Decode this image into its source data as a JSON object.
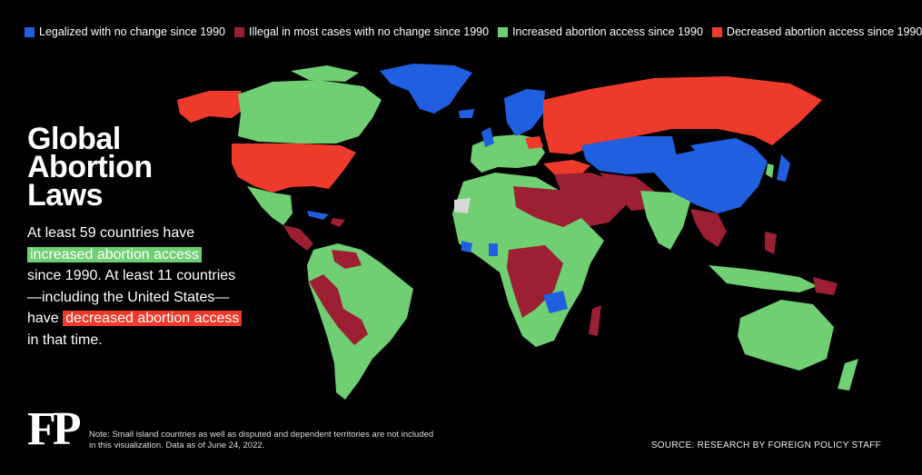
{
  "legend": [
    {
      "label": "Legalized with no change since 1990",
      "color": "#1f5fe0"
    },
    {
      "label": "Illegal in most cases with no change since 1990",
      "color": "#9c1f33"
    },
    {
      "label": "Increased abortion access since 1990",
      "color": "#6fcf72"
    },
    {
      "label": "Decreased abortion access since 1990",
      "color": "#ee3a2a"
    }
  ],
  "title": {
    "line1": "Global",
    "line2": "Abortion",
    "line3": "Laws"
  },
  "description": {
    "part1": "At least 59 countries  have",
    "highlight_increase": "increased abortion access",
    "part2": "since 1990. At least 11 countries",
    "part3": "—including the United States—",
    "part4": "have",
    "highlight_decrease": "decreased abortion access",
    "part5": "in that time."
  },
  "logo": "FP",
  "note": "Note: Small island countries as well as disputed and dependent territories are not included in this visualization. Data as of June 24, 2022.",
  "source": "SOURCE: RESEARCH BY FOREIGN POLICY STAFF",
  "colors": {
    "blue": "#1f5fe0",
    "red_dark": "#9c1f33",
    "green": "#6fcf72",
    "red": "#ee3a2a",
    "unknown": "#d8d8d8"
  }
}
